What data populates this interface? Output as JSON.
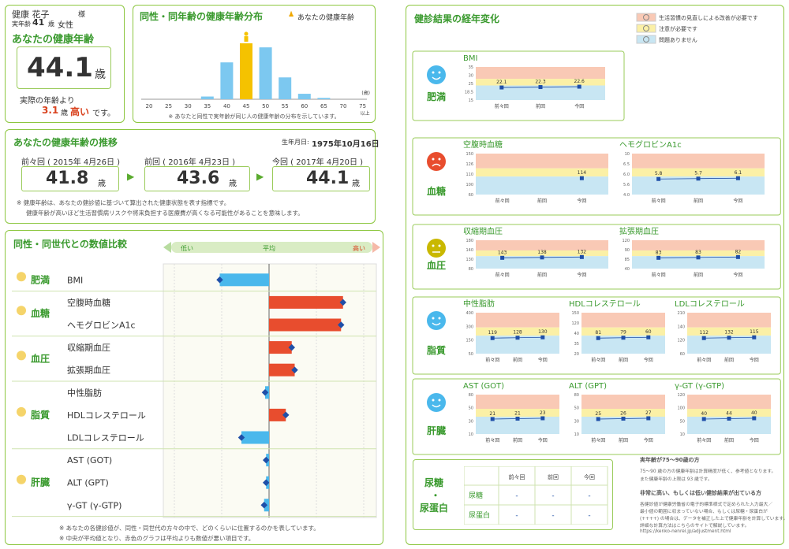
{
  "profile": {
    "name": "健康 花子",
    "honorific": "様",
    "age_label": "実年齢",
    "age": "41",
    "age_unit": "歳",
    "sex": "女性",
    "health_age_title": "あなたの健康年齢",
    "health_age": "44.1",
    "health_age_unit": "歳",
    "diff_prefix": "実際の年齢より",
    "diff_value": "3.1",
    "diff_unit": "歳",
    "diff_word": "高い",
    "diff_suffix": "です。"
  },
  "distribution": {
    "title": "同性・同年齢の健康年齢分布",
    "legend": "あなたの健康年齢",
    "ages": [
      "20",
      "25",
      "30",
      "35",
      "40",
      "45",
      "50",
      "55",
      "60",
      "65",
      "70",
      "75以上"
    ],
    "unit": "(歳)",
    "note": "※ あなたと同性で実年齢が同じ人の健康年齢の分布を示しています。",
    "colors": {
      "bar": "#7cc8f0",
      "you": "#f5c200"
    }
  },
  "chart_data": [
    {
      "type": "bar",
      "categories": [
        "20",
        "25",
        "30",
        "35",
        "40",
        "45",
        "50",
        "55",
        "60",
        "65",
        "70",
        "75以上"
      ],
      "values": [
        0,
        0,
        0,
        2,
        27,
        41,
        38,
        16,
        4,
        1,
        0,
        0
      ],
      "highlight_category": "45",
      "ylim": [
        0,
        45
      ]
    },
    {
      "type": "bar",
      "orientation": "horizontal",
      "categories": [
        "BMI",
        "空腹時血糖",
        "ヘモグロビンA1c",
        "収縮期血圧",
        "拡張期血圧",
        "中性脂肪",
        "HDLコレステロール",
        "LDLコレステロール",
        "AST (GOT)",
        "ALT (GPT)",
        "γ-GT (γ-GTP)"
      ],
      "values": [
        -0.5,
        0.75,
        0.73,
        0.23,
        0.26,
        -0.04,
        0.17,
        -0.28,
        -0.03,
        -0.03,
        -0.05
      ]
    }
  ],
  "trend": {
    "title": "あなたの健康年齢の推移",
    "birth_label": "生年月日:",
    "birth": "1975年10月16日",
    "items": [
      {
        "label": "前々回 ( 2015年 4月26日 )",
        "value": "41.8",
        "unit": "歳"
      },
      {
        "label": "前回 ( 2016年 4月23日 )",
        "value": "43.6",
        "unit": "歳"
      },
      {
        "label": "今回 ( 2017年 4月20日 )",
        "value": "44.1",
        "unit": "歳"
      }
    ],
    "note1": "※ 健康年齢は、あなたの健診値に基づいて算出された健康状態を表す指標です。",
    "note2": "健康年齢が高いほど生活習慣病リスクや将来負担する医療費が高くなる可能性があることを意味します。"
  },
  "comparison": {
    "title": "同性・同世代との数値比較",
    "axis": {
      "low": "低い",
      "mid": "平均",
      "high": "高い"
    },
    "groups": [
      {
        "name": "肥満",
        "items": [
          "BMI"
        ]
      },
      {
        "name": "血糖",
        "items": [
          "空腹時血糖",
          "ヘモグロビンA1c"
        ]
      },
      {
        "name": "血圧",
        "items": [
          "収縮期血圧",
          "拡張期血圧"
        ]
      },
      {
        "name": "脂質",
        "items": [
          "中性脂肪",
          "HDLコレステロール",
          "LDLコレステロール"
        ]
      },
      {
        "name": "肝臓",
        "items": [
          "AST (GOT)",
          "ALT (GPT)",
          "γ-GT (γ-GTP)"
        ]
      }
    ],
    "note1": "※ あなたの各健診値が、同性・同世代の方々の中で、どのくらいに位置するのかを表しています。",
    "note2": "※ 中央が平均値となり、赤色のグラフは平均よりも数値が悪い項目です。",
    "colors": {
      "good": "#4ab8ec",
      "bad": "#e84d2e",
      "marker": "#1f4fa8"
    }
  },
  "history": {
    "title": "健診結果の経年変化",
    "legend": [
      {
        "label": "生活習慣の見直しによる改善が必要です",
        "color": "#f9c9b5"
      },
      {
        "label": "注意が必要です",
        "color": "#fbf0a6"
      },
      {
        "label": "問題ありません",
        "color": "#c8e6f3"
      }
    ],
    "x_labels": [
      "前々回",
      "前回",
      "今回"
    ],
    "sections": [
      {
        "group": "肥満",
        "face": "smile",
        "charts": [
          {
            "name": "BMI",
            "values": [
              "22.1",
              "22.3",
              "22.6"
            ],
            "ticks": [
              "35",
              "30",
              "25",
              "18.5",
              "15"
            ]
          }
        ]
      },
      {
        "group": "血糖",
        "face": "bad",
        "charts": [
          {
            "name": "空腹時血糖",
            "values": [
              "",
              "",
              "114"
            ],
            "ticks": [
              "150",
              "126",
              "110",
              "100",
              "60"
            ]
          },
          {
            "name": "ヘモグロビンA1c",
            "values": [
              "5.8",
              "5.7",
              "6.1"
            ],
            "ticks": [
              "10",
              "6.5",
              "6.0",
              "5.6",
              "4.0"
            ]
          }
        ]
      },
      {
        "group": "血圧",
        "face": "meh",
        "charts": [
          {
            "name": "収縮期血圧",
            "values": [
              "143",
              "138",
              "132"
            ],
            "ticks": [
              "180",
              "140",
              "130",
              "80"
            ]
          },
          {
            "name": "拡張期血圧",
            "values": [
              "83",
              "83",
              "82"
            ],
            "ticks": [
              "120",
              "90",
              "85",
              "40"
            ]
          }
        ]
      },
      {
        "group": "脂質",
        "face": "smile",
        "charts": [
          {
            "name": "中性脂肪",
            "values": [
              "119",
              "128",
              "130"
            ],
            "ticks": [
              "400",
              "300",
              "150",
              "50"
            ]
          },
          {
            "name": "HDLコレステロール",
            "values": [
              "81",
              "79",
              "60"
            ],
            "ticks": [
              "150",
              "120",
              "40",
              "35",
              "20"
            ]
          },
          {
            "name": "LDLコレステロール",
            "values": [
              "112",
              "132",
              "115"
            ],
            "ticks": [
              "210",
              "140",
              "120",
              "60"
            ]
          }
        ]
      },
      {
        "group": "肝臓",
        "face": "smile",
        "charts": [
          {
            "name": "AST (GOT)",
            "values": [
              "21",
              "21",
              "23"
            ],
            "ticks": [
              "80",
              "50",
              "30",
              "10"
            ]
          },
          {
            "name": "ALT (GPT)",
            "values": [
              "25",
              "26",
              "27"
            ],
            "ticks": [
              "80",
              "50",
              "30",
              "10"
            ]
          },
          {
            "name": "γ-GT (γ-GTP)",
            "values": [
              "40",
              "44",
              "40"
            ],
            "ticks": [
              "120",
              "100",
              "50",
              "10"
            ]
          }
        ]
      }
    ],
    "urine": {
      "group_a": "尿糖",
      "dot": "・",
      "group_b": "尿蛋白",
      "headers": [
        "前々回",
        "前回",
        "今回"
      ],
      "rows": [
        {
          "name": "尿糖",
          "values": [
            "-",
            "-",
            "-"
          ]
        },
        {
          "name": "尿蛋白",
          "values": [
            "-",
            "-",
            "-"
          ]
        }
      ]
    },
    "info": {
      "h1": "実年齢が75～90歳の方",
      "p1": "75～90 歳の方の健康年齢は計算精度が低く、参考値となります。",
      "p1b": "また健康年齢の上限は 93 歳です。",
      "h2": "非常に高い、もしくは低い健診結果が出ている方",
      "p2a": "各健診値が健康労働省の電子的標準様式で定められた入力最大／",
      "p2b": "最小値の範囲に収まっていない場合、もしくは尿糖・尿蛋白が",
      "p2c": "(++++) の場合は、データを補正した上で健康年齢を計算しています。",
      "p2d": "詳細な計算方法はこちらのサイトで解説しています。",
      "url": "https://kenko-nenrei.jp/adjustment.html"
    }
  }
}
